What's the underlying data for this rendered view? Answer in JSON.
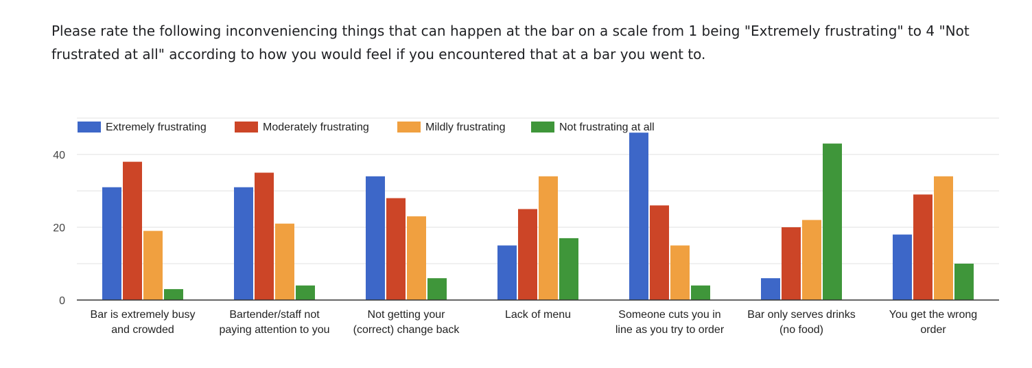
{
  "question": "Please rate the following inconveniencing things that can happen at the bar on a scale from 1 being \"Extremely frustrating\" to 4 \"Not frustrated at all\" according to how you would feel if you encountered that at a bar you went to.",
  "chart_data": {
    "type": "bar",
    "categories": [
      [
        "Bar is extremely busy",
        "and crowded"
      ],
      [
        "Bartender/staff not",
        "paying attention to you"
      ],
      [
        "Not getting your",
        "(correct) change back"
      ],
      [
        "Lack of menu"
      ],
      [
        "Someone cuts you in",
        "line as you try to order"
      ],
      [
        "Bar only serves drinks",
        "(no food)"
      ],
      [
        "You get the wrong",
        "order"
      ]
    ],
    "series": [
      {
        "name": "Extremely frustrating",
        "color": "#3d67c8",
        "values": [
          31,
          31,
          34,
          15,
          46,
          6,
          18
        ]
      },
      {
        "name": "Moderately frustrating",
        "color": "#cc4527",
        "values": [
          38,
          35,
          28,
          25,
          26,
          20,
          29
        ]
      },
      {
        "name": "Mildly frustrating",
        "color": "#f0a040",
        "values": [
          19,
          21,
          23,
          34,
          15,
          22,
          34
        ]
      },
      {
        "name": "Not frustrating at all",
        "color": "#3f963a",
        "values": [
          3,
          4,
          6,
          17,
          4,
          43,
          10
        ]
      }
    ],
    "yticks": [
      0,
      20,
      40
    ],
    "ylim": [
      0,
      50
    ],
    "grid": true,
    "legend_position": "top-left"
  }
}
